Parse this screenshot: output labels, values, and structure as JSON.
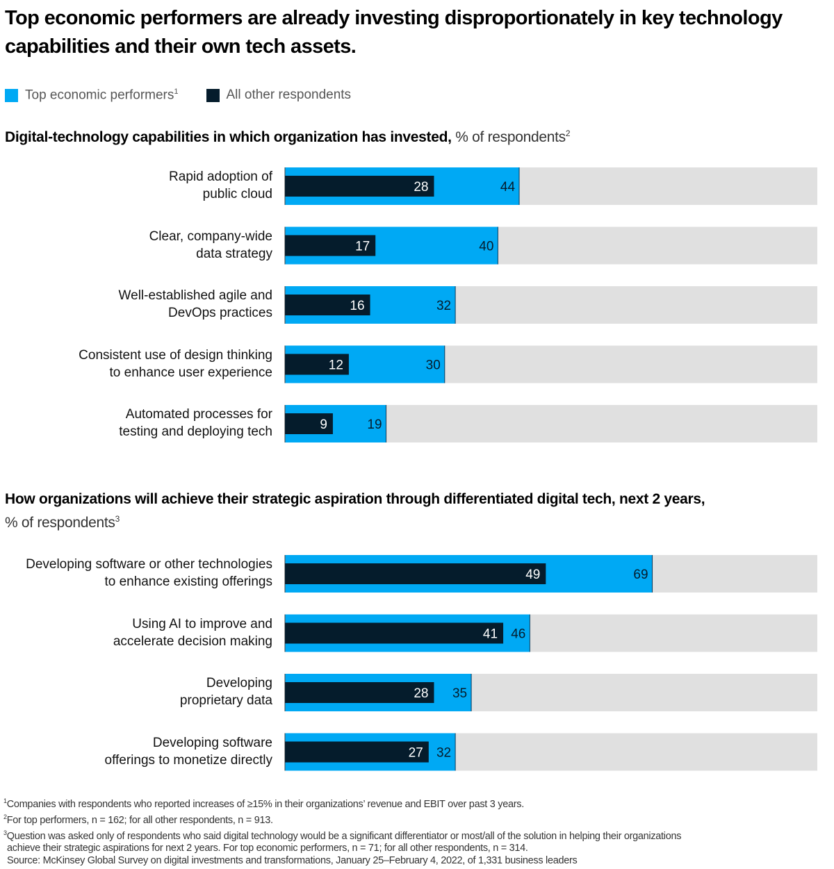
{
  "title": "Top economic performers are already investing disproportionately in key technology capabilities and their own tech assets.",
  "legend": [
    {
      "label": "Top economic performers",
      "sup": "1",
      "color": "#00a9f4"
    },
    {
      "label": "All other respondents",
      "sup": "",
      "color": "#051c2c"
    }
  ],
  "colors": {
    "top": "#00a9f4",
    "other": "#051c2c",
    "track": "#e0e0e0"
  },
  "chart_data": [
    {
      "type": "bar",
      "orientation": "horizontal",
      "title_bold": "Digital-technology capabilities in which organization has invested,",
      "title_light": "% of respondents",
      "title_sup": "2",
      "xlim": [
        0,
        100
      ],
      "categories": [
        [
          "Rapid adoption of",
          "public cloud"
        ],
        [
          "Clear, company-wide",
          "data strategy"
        ],
        [
          "Well-established agile and",
          "DevOps practices"
        ],
        [
          "Consistent use of design thinking",
          "to enhance user experience"
        ],
        [
          "Automated processes for",
          "testing and deploying tech"
        ]
      ],
      "series": [
        {
          "name": "Top economic performers",
          "values": [
            44,
            40,
            32,
            30,
            19
          ]
        },
        {
          "name": "All other respondents",
          "values": [
            28,
            17,
            16,
            12,
            9
          ]
        }
      ]
    },
    {
      "type": "bar",
      "orientation": "horizontal",
      "title_bold": "How organizations will achieve their strategic aspiration through differentiated digital tech, next 2 years,",
      "title_light": "% of respondents",
      "title_sup": "3",
      "xlim": [
        0,
        100
      ],
      "categories": [
        [
          "Developing software or other technologies",
          "to enhance existing offerings"
        ],
        [
          "Using AI to improve and",
          "accelerate decision making"
        ],
        [
          "Developing",
          "proprietary data"
        ],
        [
          "Developing software",
          "offerings to monetize directly"
        ]
      ],
      "series": [
        {
          "name": "Top economic performers",
          "values": [
            69,
            46,
            35,
            32
          ]
        },
        {
          "name": "All other respondents",
          "values": [
            49,
            41,
            28,
            27
          ]
        }
      ]
    }
  ],
  "footnotes": [
    {
      "sup": "1",
      "text": "Companies with respondents who reported increases of ≥15% in their organizations’ revenue and EBIT over past 3 years."
    },
    {
      "sup": "2",
      "text": "For top performers, n = 162; for all other respondents, n = 913."
    },
    {
      "sup": "3",
      "text": "Question was asked only of respondents who said digital technology would be a significant differentiator or most/all of the solution in helping their organizations"
    },
    {
      "sup": "",
      "text": "achieve their strategic aspirations for next 2 years. For top economic performers, n = 71; for all other respondents, n = 314."
    },
    {
      "sup": "",
      "text": "Source: McKinsey Global Survey on digital investments and transformations, January 25–February 4, 2022, of 1,331 business leaders"
    }
  ]
}
